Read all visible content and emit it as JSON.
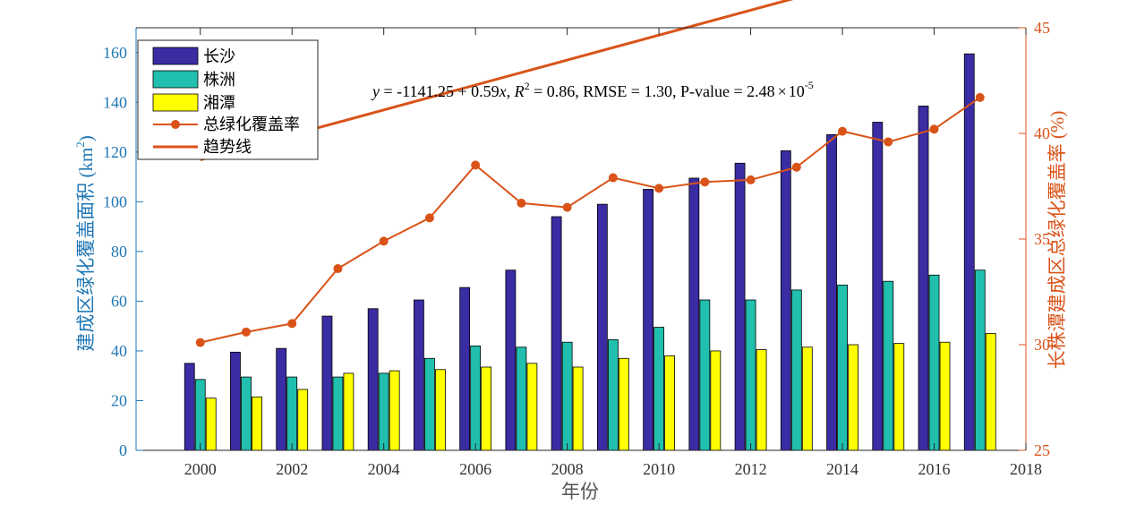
{
  "chart_data": {
    "type": "bar",
    "xlabel": "年份",
    "ylabel_left": "建成区绿化覆盖面积 (km2)",
    "ylabel_left_text": "建成区绿化覆盖面积 (km",
    "ylabel_left_sup": "2",
    "ylabel_left_close": ")",
    "ylabel_right": "长株潭建成区总绿化覆盖率 (%)",
    "xlim": [
      1998.6,
      2018
    ],
    "ylim_left": [
      0,
      170
    ],
    "ylim_right": [
      25,
      45
    ],
    "x_ticks": [
      2000,
      2002,
      2004,
      2006,
      2008,
      2010,
      2012,
      2014,
      2016,
      2018
    ],
    "y_ticks_left": [
      0,
      20,
      40,
      60,
      80,
      100,
      120,
      140,
      160
    ],
    "y_ticks_right": [
      25,
      30,
      35,
      40,
      45
    ],
    "years": [
      2000,
      2001,
      2002,
      2003,
      2004,
      2005,
      2006,
      2007,
      2008,
      2009,
      2010,
      2011,
      2012,
      2013,
      2014,
      2015,
      2016,
      2017
    ],
    "series": [
      {
        "name": "长沙",
        "color": "#3a2ca3",
        "values": [
          35,
          39.5,
          41,
          54,
          57,
          60.5,
          65.5,
          72.5,
          94,
          99,
          105,
          109.5,
          115.5,
          120.5,
          127,
          132,
          138.5,
          159.5
        ]
      },
      {
        "name": "株洲",
        "color": "#20bfae",
        "values": [
          28.5,
          29.5,
          29.5,
          29.5,
          31,
          37,
          42,
          41.5,
          43.5,
          44.5,
          49.5,
          60.5,
          60.5,
          64.5,
          66.5,
          68,
          70.5,
          72.5
        ]
      },
      {
        "name": "湘潭",
        "color": "#ffff00",
        "values": [
          21,
          21.5,
          24.5,
          31,
          32,
          32.5,
          33.5,
          35,
          33.5,
          37,
          38,
          40,
          40.5,
          41.5,
          42.5,
          43,
          43.5,
          47
        ]
      }
    ],
    "line_series": {
      "name": "总绿化覆盖率",
      "color": "#d95319",
      "values": [
        30.1,
        30.6,
        31.0,
        33.6,
        34.9,
        36.0,
        38.5,
        36.7,
        36.5,
        37.9,
        37.4,
        37.7,
        37.8,
        38.4,
        40.1,
        39.6,
        40.2,
        41.7
      ]
    },
    "trend": {
      "name": "趋势线",
      "color": "#d95319",
      "intercept": -1141.25,
      "slope": 0.59,
      "x_range": [
        2000,
        2017
      ]
    },
    "annotation": {
      "y_var": "y",
      "eq_part1": " = -1141.25 + 0.59",
      "x_var": "x",
      "comma1": ", ",
      "r_var": "R",
      "r_sup": "2",
      "eq_part2": " = 0.86, RMSE = 1.30, P-value = 2.48",
      "times": "×",
      "pow_base": "10",
      "pow_exp": "-5"
    },
    "legend_position": "top-left"
  }
}
